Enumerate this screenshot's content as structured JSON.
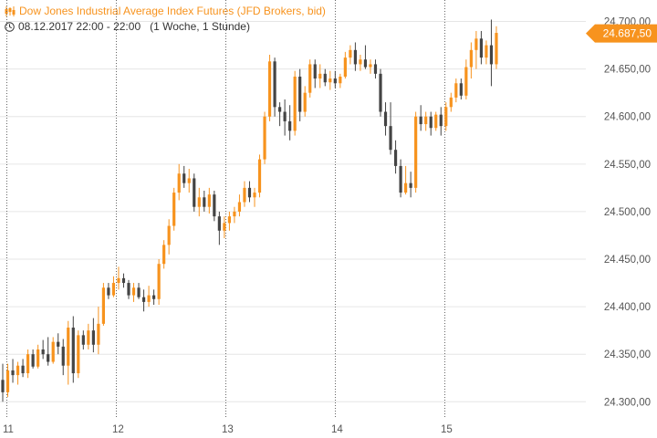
{
  "header": {
    "title": "Dow Jones Industrial Average Index Futures (JFD Brokers, bid)",
    "subtitle": "08.12.2017 22:00 - 22:00   (1 Woche, 1 Stunde)"
  },
  "colors": {
    "up": "#f7931e",
    "down": "#444444",
    "grid": "#e6e6e6",
    "badge": "#f7931e"
  },
  "chart_data": {
    "type": "candlestick",
    "y_ticks": [
      {
        "v": 24300,
        "label": "24.300,00"
      },
      {
        "v": 24350,
        "label": "24.350,00"
      },
      {
        "v": 24400,
        "label": "24.400,00"
      },
      {
        "v": 24450,
        "label": "24.450,00"
      },
      {
        "v": 24500,
        "label": "24.500,00"
      },
      {
        "v": 24550,
        "label": "24.550,00"
      },
      {
        "v": 24600,
        "label": "24.600,00"
      },
      {
        "v": 24650,
        "label": "24.650,00"
      },
      {
        "v": 24700,
        "label": "24.700,00"
      }
    ],
    "ylim": [
      24283,
      24713
    ],
    "x_days": [
      "11",
      "12",
      "13",
      "14",
      "15"
    ],
    "last_price": {
      "value": 24687.5,
      "label": "24.687,50"
    },
    "candles": [
      [
        24323,
        24340,
        24300,
        24310
      ],
      [
        24310,
        24340,
        24305,
        24333
      ],
      [
        24333,
        24345,
        24320,
        24328
      ],
      [
        24328,
        24342,
        24318,
        24338
      ],
      [
        24338,
        24345,
        24326,
        24330
      ],
      [
        24330,
        24355,
        24325,
        24350
      ],
      [
        24350,
        24355,
        24335,
        24337
      ],
      [
        24337,
        24360,
        24335,
        24355
      ],
      [
        24355,
        24365,
        24345,
        24350
      ],
      [
        24350,
        24368,
        24338,
        24342
      ],
      [
        24342,
        24368,
        24340,
        24363
      ],
      [
        24363,
        24372,
        24350,
        24358
      ],
      [
        24358,
        24366,
        24328,
        24338
      ],
      [
        24338,
        24385,
        24318,
        24378
      ],
      [
        24378,
        24390,
        24320,
        24330
      ],
      [
        24330,
        24375,
        24325,
        24370
      ],
      [
        24370,
        24375,
        24355,
        24360
      ],
      [
        24360,
        24382,
        24355,
        24375
      ],
      [
        24375,
        24388,
        24352,
        24360
      ],
      [
        24360,
        24400,
        24350,
        24382
      ],
      [
        24382,
        24425,
        24380,
        24420
      ],
      [
        24420,
        24425,
        24408,
        24412
      ],
      [
        24412,
        24432,
        24410,
        24425
      ],
      [
        24425,
        24442,
        24418,
        24430
      ],
      [
        24430,
        24435,
        24420,
        24425
      ],
      [
        24425,
        24428,
        24408,
        24412
      ],
      [
        24412,
        24425,
        24405,
        24420
      ],
      [
        24420,
        24425,
        24408,
        24410
      ],
      [
        24410,
        24418,
        24395,
        24405
      ],
      [
        24405,
        24422,
        24400,
        24412
      ],
      [
        24412,
        24418,
        24402,
        24408
      ],
      [
        24408,
        24450,
        24402,
        24445
      ],
      [
        24445,
        24470,
        24440,
        24465
      ],
      [
        24465,
        24492,
        24455,
        24485
      ],
      [
        24485,
        24525,
        24480,
        24520
      ],
      [
        24520,
        24550,
        24512,
        24540
      ],
      [
        24540,
        24548,
        24525,
        24530
      ],
      [
        24530,
        24545,
        24520,
        24535
      ],
      [
        24535,
        24540,
        24500,
        24505
      ],
      [
        24505,
        24525,
        24495,
        24515
      ],
      [
        24515,
        24522,
        24500,
        24505
      ],
      [
        24505,
        24525,
        24498,
        24518
      ],
      [
        24518,
        24522,
        24490,
        24495
      ],
      [
        24495,
        24500,
        24465,
        24480
      ],
      [
        24480,
        24495,
        24472,
        24488
      ],
      [
        24488,
        24500,
        24480,
        24495
      ],
      [
        24495,
        24505,
        24488,
        24500
      ],
      [
        24500,
        24518,
        24495,
        24510
      ],
      [
        24510,
        24532,
        24505,
        24525
      ],
      [
        24525,
        24532,
        24510,
        24515
      ],
      [
        24515,
        24525,
        24505,
        24520
      ],
      [
        24520,
        24560,
        24515,
        24555
      ],
      [
        24555,
        24605,
        24550,
        24600
      ],
      [
        24600,
        24665,
        24595,
        24658
      ],
      [
        24658,
        24662,
        24600,
        24610
      ],
      [
        24610,
        24615,
        24590,
        24605
      ],
      [
        24605,
        24618,
        24580,
        24595
      ],
      [
        24595,
        24612,
        24575,
        24585
      ],
      [
        24585,
        24648,
        24580,
        24642
      ],
      [
        24642,
        24650,
        24595,
        24605
      ],
      [
        24605,
        24632,
        24600,
        24625
      ],
      [
        24625,
        24660,
        24620,
        24655
      ],
      [
        24655,
        24660,
        24630,
        24640
      ],
      [
        24640,
        24655,
        24630,
        24645
      ],
      [
        24645,
        24650,
        24632,
        24636
      ],
      [
        24636,
        24648,
        24628,
        24640
      ],
      [
        24640,
        24648,
        24630,
        24635
      ],
      [
        24635,
        24645,
        24630,
        24642
      ],
      [
        24642,
        24668,
        24640,
        24662
      ],
      [
        24662,
        24675,
        24655,
        24670
      ],
      [
        24670,
        24678,
        24648,
        24655
      ],
      [
        24655,
        24665,
        24648,
        24660
      ],
      [
        24660,
        24675,
        24650,
        24652
      ],
      [
        24652,
        24660,
        24645,
        24655
      ],
      [
        24655,
        24660,
        24640,
        24645
      ],
      [
        24645,
        24650,
        24600,
        24605
      ],
      [
        24605,
        24615,
        24580,
        24590
      ],
      [
        24590,
        24615,
        24560,
        24565
      ],
      [
        24565,
        24575,
        24540,
        24548
      ],
      [
        24548,
        24555,
        24515,
        24520
      ],
      [
        24520,
        24548,
        24518,
        24530
      ],
      [
        24530,
        24542,
        24515,
        24525
      ],
      [
        24525,
        24605,
        24520,
        24600
      ],
      [
        24600,
        24612,
        24585,
        24592
      ],
      [
        24592,
        24605,
        24585,
        24600
      ],
      [
        24600,
        24605,
        24580,
        24588
      ],
      [
        24588,
        24605,
        24585,
        24602
      ],
      [
        24602,
        24610,
        24580,
        24590
      ],
      [
        24590,
        24615,
        24585,
        24610
      ],
      [
        24610,
        24625,
        24605,
        24620
      ],
      [
        24620,
        24640,
        24615,
        24635
      ],
      [
        24635,
        24640,
        24618,
        24622
      ],
      [
        24622,
        24660,
        24618,
        24652
      ],
      [
        24652,
        24678,
        24640,
        24670
      ],
      [
        24670,
        24690,
        24650,
        24682
      ],
      [
        24682,
        24690,
        24655,
        24662
      ],
      [
        24662,
        24680,
        24655,
        24675
      ],
      [
        24675,
        24702,
        24632,
        24655
      ],
      [
        24655,
        24695,
        24650,
        24688
      ]
    ]
  }
}
